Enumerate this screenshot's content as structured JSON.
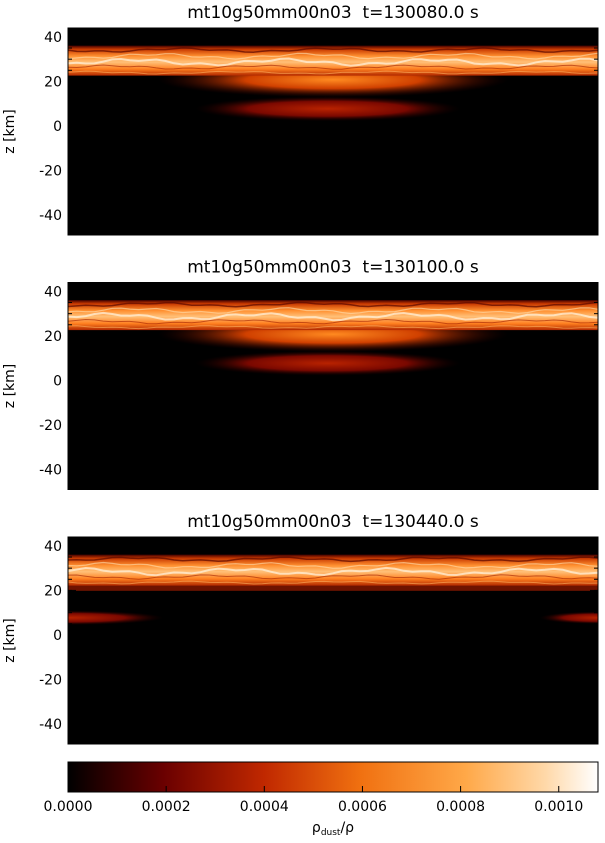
{
  "chart_data": [
    {
      "type": "heatmap",
      "title": "mt10g50mm00n03  t=130080.0 s",
      "y_label": "z [km]",
      "ylim": [
        -49,
        44
      ],
      "yticks": [
        -40,
        -20,
        0,
        20,
        40
      ]
    },
    {
      "type": "heatmap",
      "title": "mt10g50mm00n03  t=130100.0 s",
      "y_label": "z [km]",
      "ylim": [
        -49,
        44
      ],
      "yticks": [
        -40,
        -20,
        0,
        20,
        40
      ]
    },
    {
      "type": "heatmap",
      "title": "mt10g50mm00n03  t=130440.0 s",
      "y_label": "z [km]",
      "ylim": [
        -49,
        44
      ],
      "yticks": [
        -40,
        -20,
        0,
        20,
        40
      ]
    },
    {
      "type": "colorbar",
      "xlim": [
        0,
        0.00108
      ],
      "xticks": [
        {
          "value": 0,
          "label": "0.0000"
        },
        {
          "value": 0.0002,
          "label": "0.0002"
        },
        {
          "value": 0.0004,
          "label": "0.0004"
        },
        {
          "value": 0.0006,
          "label": "0.0006"
        },
        {
          "value": 0.0008,
          "label": "0.0008"
        },
        {
          "value": 0.001,
          "label": "0.0010"
        }
      ],
      "label": {
        "base": "ρ",
        "sub": "dust",
        "rest": "/ρ"
      }
    }
  ]
}
